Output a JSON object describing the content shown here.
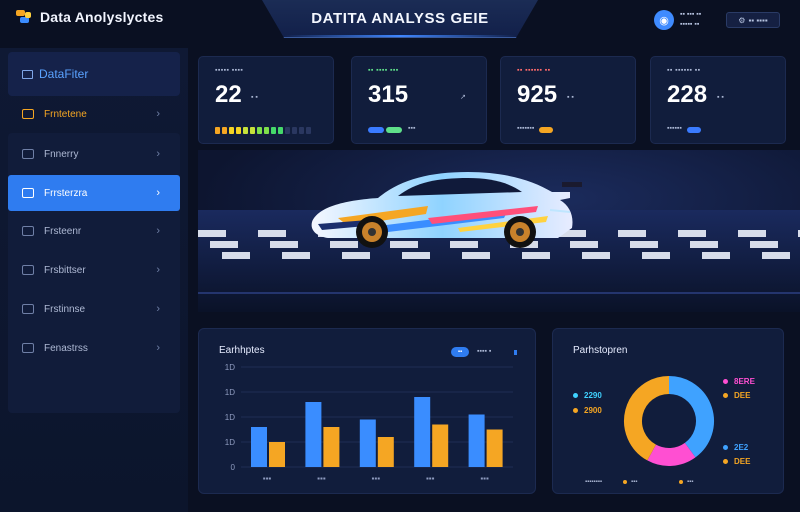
{
  "header": {
    "app_name": "Data Anolyslyctes",
    "title": "DATITA ANALYSS GEIE",
    "user_line_1": "▪▪ ▪▪▪ ▪▪",
    "user_line_2": "▪▪▪▪▪ ▪▪",
    "action_label": "▪▪ ▪▪▪▪"
  },
  "sidebar": {
    "title": "DataFiter",
    "items": [
      {
        "label": "Frntetene",
        "state": "highlighted"
      },
      {
        "label": "Fnnerry",
        "state": "default"
      },
      {
        "label": "Frrsterzra",
        "state": "active"
      },
      {
        "label": "Frsteenr",
        "state": "default"
      },
      {
        "label": "Frsbittser",
        "state": "default"
      },
      {
        "label": "Frstinnse",
        "state": "default"
      },
      {
        "label": "Fenastrss",
        "state": "default"
      }
    ]
  },
  "stats": [
    {
      "label": "▪▪▪▪▪ ▪▪▪▪",
      "value": "22",
      "unit": "▪ ▪",
      "progress_segments": 14,
      "progress_filled": 10
    },
    {
      "label": "▪▪ ▪▪▪▪ ▪▪▪",
      "value": "315",
      "unit": "",
      "pill_text": "▪▪▪",
      "pill_color": "#3a7bff",
      "pill2_color": "#5fe08a"
    },
    {
      "label": "▪▪ ▪▪▪▪▪▪ ▪▪",
      "value": "925",
      "unit": "▪ ▪",
      "pill_text": "▪▪▪▪▪▪▪",
      "pill_color": "#f5a623"
    },
    {
      "label": "▪▪ ▪▪▪▪▪▪ ▪▪",
      "value": "228",
      "unit": "▪ ▪",
      "pill_text": "▪▪▪▪▪▪",
      "pill_color": "#3a7bff"
    }
  ],
  "colors": {
    "accent": "#2f7cf0",
    "series_a": "#3a8dff",
    "series_b": "#f5a623",
    "donut": [
      "#3fa2ff",
      "#ff4fd2",
      "#f5a623"
    ]
  },
  "chart_data": {
    "type": "bar",
    "title": "Earhhptes",
    "categories": [
      "▪▪▪",
      "▪▪▪",
      "▪▪▪",
      "▪▪▪",
      "▪▪▪"
    ],
    "y_ticks": [
      "0",
      "1D",
      "1D",
      "1D",
      "1D"
    ],
    "ylim": [
      0,
      40
    ],
    "series": [
      {
        "values": [
          16,
          26,
          19,
          28,
          21
        ]
      },
      {
        "values": [
          10,
          16,
          12,
          17,
          15
        ]
      }
    ],
    "legend_toggle": "▪▪",
    "legend_label": "▪▪▪▪ ▪"
  },
  "donut": {
    "title": "Parhstopren",
    "slices": [
      {
        "value": 40,
        "color": "#3fa2ff"
      },
      {
        "value": 18,
        "color": "#ff4fd2"
      },
      {
        "value": 42,
        "color": "#f5a623"
      }
    ],
    "left_legend": [
      {
        "text": "2290",
        "color": "#3fd2ff"
      },
      {
        "text": "2900",
        "color": "#f5a623"
      }
    ],
    "right_legend": [
      {
        "text": "8ERE",
        "color": "#ff4fd2"
      },
      {
        "text": "DEE",
        "color": "#f5a623"
      },
      {
        "text": "2E2",
        "color": "#3fa2ff"
      },
      {
        "text": "DEE",
        "color": "#f5a623"
      }
    ],
    "footer": [
      {
        "text": "▪▪▪▪▪▪▪▪",
        "color": "#3fa2ff"
      },
      {
        "text": "▪▪▪",
        "color": "#f5a623"
      },
      {
        "text": "▪▪▪",
        "color": "#f5a623"
      }
    ]
  }
}
